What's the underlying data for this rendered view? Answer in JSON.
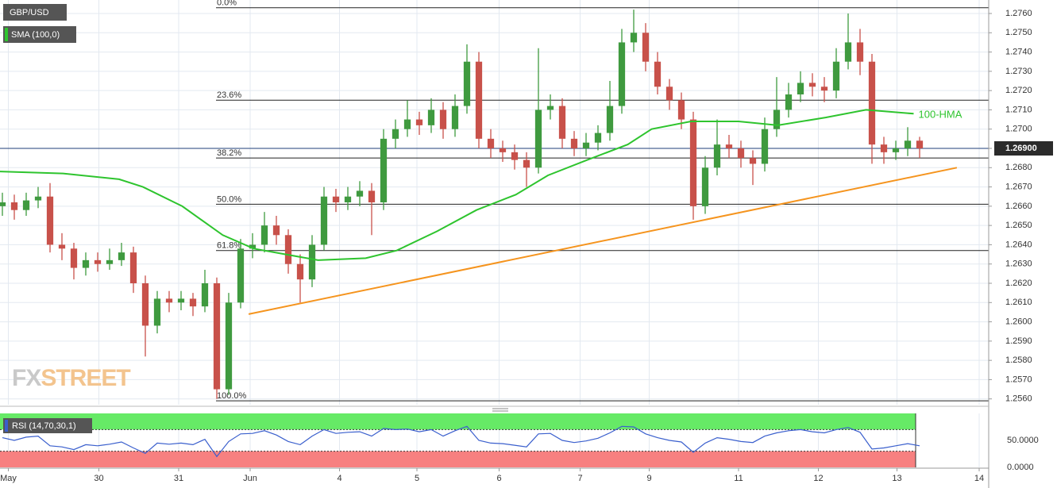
{
  "chart_data": {
    "type": "candlestick",
    "symbol": "GBP/USD",
    "indicator_legend": "SMA (100,0)",
    "watermark": {
      "a": "FX",
      "b": "STREET"
    },
    "up_color": "#3f9a3f",
    "down_color": "#c8514a",
    "ohlc": [
      [
        1.266,
        1.2667,
        1.2655,
        1.2662
      ],
      [
        1.2662,
        1.2666,
        1.2653,
        1.2658
      ],
      [
        1.2658,
        1.2667,
        1.2655,
        1.2663
      ],
      [
        1.2663,
        1.267,
        1.2659,
        1.2665
      ],
      [
        1.2665,
        1.2672,
        1.2636,
        1.264
      ],
      [
        1.264,
        1.2646,
        1.2632,
        1.2638
      ],
      [
        1.2638,
        1.2641,
        1.2622,
        1.2628
      ],
      [
        1.2628,
        1.2636,
        1.2624,
        1.2632
      ],
      [
        1.2632,
        1.2636,
        1.2626,
        1.263
      ],
      [
        1.263,
        1.2638,
        1.2627,
        1.2632
      ],
      [
        1.2632,
        1.2641,
        1.2629,
        1.2636
      ],
      [
        1.2636,
        1.2639,
        1.2615,
        1.262
      ],
      [
        1.262,
        1.2624,
        1.2582,
        1.2598
      ],
      [
        1.2598,
        1.2616,
        1.2594,
        1.2612
      ],
      [
        1.2612,
        1.2616,
        1.2605,
        1.261
      ],
      [
        1.261,
        1.2616,
        1.2606,
        1.2612
      ],
      [
        1.2612,
        1.2615,
        1.2603,
        1.2608
      ],
      [
        1.2608,
        1.2627,
        1.2605,
        1.262
      ],
      [
        1.262,
        1.2623,
        1.256,
        1.2565
      ],
      [
        1.2565,
        1.2615,
        1.2562,
        1.261
      ],
      [
        1.261,
        1.2643,
        1.2607,
        1.2638
      ],
      [
        1.2638,
        1.2646,
        1.2633,
        1.264
      ],
      [
        1.264,
        1.2657,
        1.2636,
        1.265
      ],
      [
        1.265,
        1.2655,
        1.264,
        1.2645
      ],
      [
        1.2645,
        1.2648,
        1.2625,
        1.263
      ],
      [
        1.263,
        1.2635,
        1.261,
        1.2622
      ],
      [
        1.2622,
        1.2645,
        1.2618,
        1.264
      ],
      [
        1.264,
        1.267,
        1.2637,
        1.2665
      ],
      [
        1.2665,
        1.2669,
        1.2657,
        1.2662
      ],
      [
        1.2662,
        1.267,
        1.2658,
        1.2665
      ],
      [
        1.2665,
        1.2673,
        1.266,
        1.2668
      ],
      [
        1.2668,
        1.2672,
        1.2645,
        1.2662
      ],
      [
        1.2662,
        1.27,
        1.2658,
        1.2695
      ],
      [
        1.2695,
        1.2705,
        1.269,
        1.27
      ],
      [
        1.27,
        1.2715,
        1.2696,
        1.2705
      ],
      [
        1.2705,
        1.2709,
        1.2697,
        1.2702
      ],
      [
        1.2702,
        1.2716,
        1.2698,
        1.271
      ],
      [
        1.271,
        1.2714,
        1.2695,
        1.27
      ],
      [
        1.27,
        1.2718,
        1.2696,
        1.2712
      ],
      [
        1.2712,
        1.2744,
        1.2708,
        1.2735
      ],
      [
        1.2735,
        1.274,
        1.269,
        1.2695
      ],
      [
        1.2695,
        1.27,
        1.2685,
        1.269
      ],
      [
        1.269,
        1.2694,
        1.2683,
        1.2688
      ],
      [
        1.2688,
        1.2692,
        1.2679,
        1.2684
      ],
      [
        1.2684,
        1.2688,
        1.267,
        1.268
      ],
      [
        1.268,
        1.2742,
        1.2677,
        1.271
      ],
      [
        1.271,
        1.2718,
        1.2705,
        1.2712
      ],
      [
        1.2712,
        1.2716,
        1.269,
        1.2695
      ],
      [
        1.2695,
        1.2699,
        1.2686,
        1.269
      ],
      [
        1.269,
        1.2698,
        1.2686,
        1.2693
      ],
      [
        1.2693,
        1.2702,
        1.2689,
        1.2698
      ],
      [
        1.2698,
        1.2725,
        1.2694,
        1.2712
      ],
      [
        1.2712,
        1.2752,
        1.2708,
        1.2745
      ],
      [
        1.2745,
        1.2762,
        1.274,
        1.275
      ],
      [
        1.275,
        1.2755,
        1.273,
        1.2735
      ],
      [
        1.2735,
        1.274,
        1.2718,
        1.2722
      ],
      [
        1.2722,
        1.2726,
        1.271,
        1.2715
      ],
      [
        1.2715,
        1.2719,
        1.27,
        1.2705
      ],
      [
        1.2705,
        1.2709,
        1.2653,
        1.266
      ],
      [
        1.266,
        1.2686,
        1.2656,
        1.268
      ],
      [
        1.268,
        1.2705,
        1.2676,
        1.2692
      ],
      [
        1.2692,
        1.2697,
        1.2685,
        1.269
      ],
      [
        1.269,
        1.2694,
        1.268,
        1.2685
      ],
      [
        1.2685,
        1.2689,
        1.2671,
        1.2682
      ],
      [
        1.2682,
        1.2706,
        1.2678,
        1.27
      ],
      [
        1.27,
        1.2727,
        1.2696,
        1.271
      ],
      [
        1.271,
        1.2724,
        1.2706,
        1.2718
      ],
      [
        1.2718,
        1.273,
        1.2714,
        1.2724
      ],
      [
        1.2724,
        1.2729,
        1.2717,
        1.2722
      ],
      [
        1.2722,
        1.2727,
        1.2714,
        1.272
      ],
      [
        1.272,
        1.2742,
        1.2716,
        1.2735
      ],
      [
        1.2735,
        1.276,
        1.2731,
        1.2745
      ],
      [
        1.2745,
        1.2752,
        1.2728,
        1.2735
      ],
      [
        1.2735,
        1.2739,
        1.2682,
        1.2692
      ],
      [
        1.2692,
        1.2696,
        1.2682,
        1.2688
      ],
      [
        1.2688,
        1.2694,
        1.2684,
        1.269
      ],
      [
        1.269,
        1.2701,
        1.2686,
        1.2694
      ],
      [
        1.2694,
        1.2696,
        1.2685,
        1.269
      ]
    ],
    "hma": {
      "name": "100-HMA",
      "color": "#2ec42e",
      "x": [
        -0.2,
        5.1,
        9.8,
        11.8,
        15.1,
        18.5,
        21.1,
        23.8,
        26.5,
        30.5,
        33.1,
        36.5,
        39.8,
        43.1,
        45.8,
        49.1,
        52.5,
        54.5,
        57.8,
        61.8,
        65.1,
        69.1,
        72.5,
        76.5
      ],
      "values": [
        1.2678,
        1.2677,
        1.2674,
        1.267,
        1.266,
        1.2645,
        1.2638,
        1.2635,
        1.2632,
        1.2633,
        1.2637,
        1.2647,
        1.2658,
        1.2666,
        1.2676,
        1.2684,
        1.2692,
        1.27,
        1.2704,
        1.2704,
        1.2702,
        1.2706,
        1.271,
        1.2708
      ]
    },
    "trendline": {
      "color": "#f5941e",
      "x": [
        20.67,
        80.13
      ],
      "values": [
        1.2604,
        1.268
      ]
    },
    "fib_levels": [
      {
        "value": 1.2763,
        "label": "0.0%"
      },
      {
        "value": 1.2715,
        "label": "23.6%"
      },
      {
        "value": 1.2685,
        "label": "38.2%"
      },
      {
        "value": 1.2661,
        "label": "50.0%"
      },
      {
        "value": 1.2637,
        "label": "61.8%"
      },
      {
        "value": 1.2559,
        "label": "100.0%"
      }
    ],
    "last_price": {
      "value": 1.269,
      "label": "1.26900"
    },
    "xlim": [
      -0.2,
      82.8
    ],
    "ylim": [
      1.2557,
      1.2767
    ],
    "yticks": [
      {
        "value": 1.256,
        "label": "1.2560"
      },
      {
        "value": 1.257,
        "label": "1.2570"
      },
      {
        "value": 1.258,
        "label": "1.2580"
      },
      {
        "value": 1.259,
        "label": "1.2590"
      },
      {
        "value": 1.26,
        "label": "1.2600"
      },
      {
        "value": 1.261,
        "label": "1.2610"
      },
      {
        "value": 1.262,
        "label": "1.2620"
      },
      {
        "value": 1.263,
        "label": "1.2630"
      },
      {
        "value": 1.264,
        "label": "1.2640"
      },
      {
        "value": 1.265,
        "label": "1.2650"
      },
      {
        "value": 1.266,
        "label": "1.2660"
      },
      {
        "value": 1.267,
        "label": "1.2670"
      },
      {
        "value": 1.268,
        "label": "1.2680"
      },
      {
        "value": 1.269,
        "label": "1.2690"
      },
      {
        "value": 1.27,
        "label": "1.2700"
      },
      {
        "value": 1.271,
        "label": "1.2710"
      },
      {
        "value": 1.272,
        "label": "1.2720"
      },
      {
        "value": 1.273,
        "label": "1.2730"
      },
      {
        "value": 1.274,
        "label": "1.2740"
      },
      {
        "value": 1.275,
        "label": "1.2750"
      },
      {
        "value": 1.276,
        "label": "1.2760"
      }
    ],
    "xticks": [
      {
        "value": 0.5,
        "label": "May"
      },
      {
        "value": 8.1,
        "label": "30"
      },
      {
        "value": 14.8,
        "label": "31"
      },
      {
        "value": 20.8,
        "label": "Jun"
      },
      {
        "value": 28.3,
        "label": "4"
      },
      {
        "value": 34.8,
        "label": "5"
      },
      {
        "value": 41.7,
        "label": "6"
      },
      {
        "value": 48.5,
        "label": "7"
      },
      {
        "value": 54.3,
        "label": "9"
      },
      {
        "value": 61.8,
        "label": "11"
      },
      {
        "value": 68.5,
        "label": "12"
      },
      {
        "value": 75.1,
        "label": "13"
      },
      {
        "value": 82,
        "label": "14"
      }
    ],
    "grid": true,
    "rsi": {
      "name": "RSI (14,70,30,1)",
      "color": "#3a5fcd",
      "levels": [
        70,
        30
      ],
      "ylim": [
        0,
        100
      ],
      "yticks": [
        {
          "value": 50,
          "label": "50.0000"
        },
        {
          "value": 0,
          "label": "0.0000"
        }
      ],
      "values": [
        55,
        50,
        56,
        58,
        40,
        38,
        33,
        42,
        40,
        43,
        47,
        36,
        26,
        45,
        43,
        45,
        42,
        52,
        20,
        48,
        62,
        63,
        68,
        60,
        48,
        42,
        58,
        70,
        63,
        65,
        66,
        58,
        72,
        70,
        71,
        66,
        70,
        58,
        68,
        76,
        50,
        45,
        44,
        41,
        38,
        62,
        63,
        50,
        46,
        49,
        54,
        64,
        76,
        75,
        62,
        55,
        50,
        47,
        28,
        45,
        55,
        52,
        48,
        46,
        58,
        64,
        68,
        70,
        66,
        64,
        70,
        74,
        65,
        34,
        36,
        40,
        44,
        40
      ]
    }
  }
}
